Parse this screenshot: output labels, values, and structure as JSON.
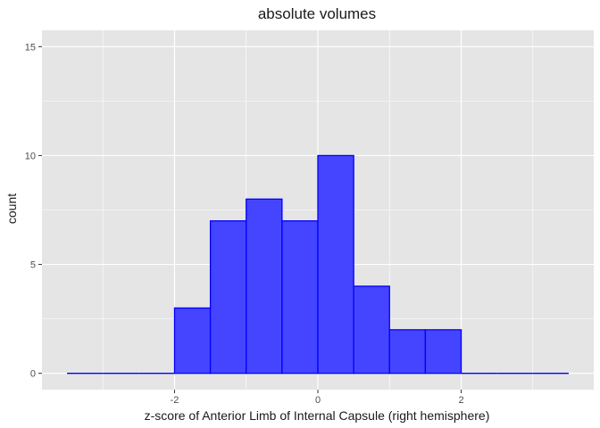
{
  "chart_data": {
    "type": "bar",
    "title": "absolute volumes",
    "xlabel": "z-score of Anterior Limb of Internal Capsule (right hemisphere)",
    "ylabel": "count",
    "bins": [
      {
        "x0": -3.5,
        "x1": -3.0,
        "count": 0
      },
      {
        "x0": -3.0,
        "x1": -2.5,
        "count": 0
      },
      {
        "x0": -2.5,
        "x1": -2.0,
        "count": 0
      },
      {
        "x0": -2.0,
        "x1": -1.5,
        "count": 3
      },
      {
        "x0": -1.5,
        "x1": -1.0,
        "count": 7
      },
      {
        "x0": -1.0,
        "x1": -0.5,
        "count": 8
      },
      {
        "x0": -0.5,
        "x1": 0.0,
        "count": 7
      },
      {
        "x0": 0.0,
        "x1": 0.5,
        "count": 10
      },
      {
        "x0": 0.5,
        "x1": 1.0,
        "count": 4
      },
      {
        "x0": 1.0,
        "x1": 1.5,
        "count": 2
      },
      {
        "x0": 1.5,
        "x1": 2.0,
        "count": 2
      },
      {
        "x0": 2.0,
        "x1": 2.5,
        "count": 0
      },
      {
        "x0": 2.5,
        "x1": 3.0,
        "count": 0
      },
      {
        "x0": 3.0,
        "x1": 3.5,
        "count": 0
      }
    ],
    "xlim": [
      -3.5,
      3.5
    ],
    "ylim": [
      0,
      15
    ],
    "x_ticks": [
      -2,
      0,
      2
    ],
    "x_tick_labels": [
      "-2",
      "0",
      "2"
    ],
    "y_ticks": [
      0,
      5,
      10,
      15
    ],
    "y_tick_labels": [
      "0",
      "5",
      "10",
      "15"
    ],
    "grid": true,
    "colors": {
      "panel_bg": "#e5e5e5",
      "grid": "#ffffff",
      "bar_fill": "#4545ff",
      "bar_stroke": "#0000ff"
    }
  }
}
